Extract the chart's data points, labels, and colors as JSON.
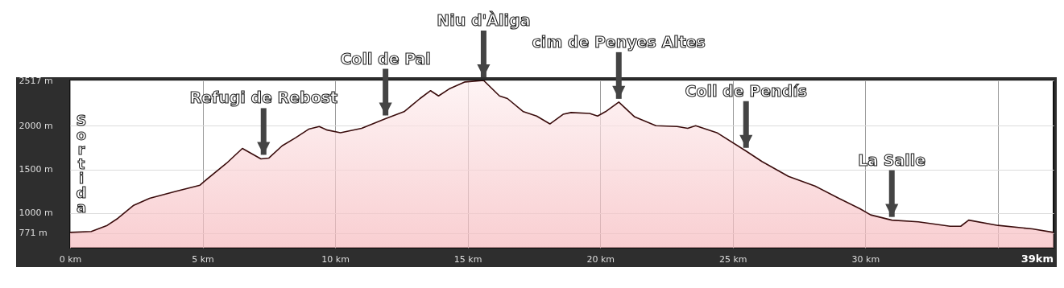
{
  "chart_data": {
    "type": "area",
    "xlim": [
      0,
      37.1
    ],
    "ylim": [
      604,
      2517
    ],
    "xticks": [
      {
        "value": 0,
        "label": "0 km"
      },
      {
        "value": 5,
        "label": "5 km"
      },
      {
        "value": 10,
        "label": "10 km"
      },
      {
        "value": 15,
        "label": "15 km"
      },
      {
        "value": 20,
        "label": "20 km"
      },
      {
        "value": 25,
        "label": "25 km"
      },
      {
        "value": 30,
        "label": "30 km"
      },
      {
        "value": 35,
        "label": null
      }
    ],
    "yticks": [
      {
        "value": 771,
        "label": "771 m"
      },
      {
        "value": 1000,
        "label": "1000 m"
      },
      {
        "value": 1500,
        "label": "1500 m"
      },
      {
        "value": 2000,
        "label": "2000 m"
      },
      {
        "value": 2517,
        "label": "2517 m"
      }
    ],
    "grid": true,
    "series": [
      {
        "color": "#f4a9ae",
        "x": [
          0,
          0.8,
          1.4,
          1.8,
          2.4,
          3.0,
          4.0,
          4.9,
          5.05,
          5.9,
          6.5,
          7.2,
          7.5,
          8.0,
          8.5,
          9.0,
          9.4,
          9.7,
          10.2,
          11.0,
          11.9,
          12.6,
          13.2,
          13.6,
          13.9,
          14.3,
          14.9,
          15.6,
          16.2,
          16.5,
          17.1,
          17.6,
          18.1,
          18.6,
          18.9,
          19.6,
          19.9,
          20.2,
          20.7,
          21.3,
          22.1,
          22.9,
          23.3,
          23.6,
          24.4,
          25.5,
          26.1,
          27.1,
          28.1,
          29.0,
          29.8,
          30.2,
          31.0,
          32.0,
          33.2,
          33.6,
          33.9,
          35.0,
          36.3,
          37.1
        ],
        "values": [
          780,
          790,
          860,
          940,
          1090,
          1170,
          1250,
          1320,
          1360,
          1570,
          1740,
          1620,
          1630,
          1770,
          1860,
          1960,
          1990,
          1950,
          1920,
          1970,
          2080,
          2160,
          2310,
          2400,
          2340,
          2420,
          2500,
          2517,
          2340,
          2310,
          2160,
          2110,
          2020,
          2130,
          2150,
          2140,
          2110,
          2160,
          2270,
          2100,
          2000,
          1990,
          1970,
          2000,
          1920,
          1710,
          1590,
          1420,
          1310,
          1170,
          1050,
          980,
          920,
          900,
          850,
          850,
          920,
          860,
          820,
          780
        ]
      }
    ],
    "annotations": [
      "Sortida",
      "39km",
      {
        "text": "Refugi de Rebost",
        "x": 7.3,
        "y": 1630
      },
      {
        "text": "Coll de Pal",
        "x": 11.9,
        "y": 2080
      },
      {
        "text": "Niu d'Àliga",
        "x": 15.6,
        "y": 2517
      },
      {
        "text": "cim de Penyes Altes",
        "x": 20.7,
        "y": 2270
      },
      {
        "text": "Coll de Pendís",
        "x": 25.5,
        "y": 1710
      },
      {
        "text": "La Salle",
        "x": 31.0,
        "y": 920
      }
    ]
  }
}
